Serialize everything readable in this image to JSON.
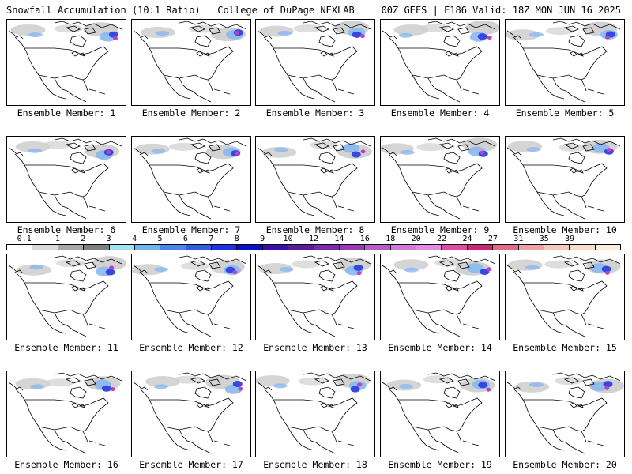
{
  "header": {
    "title_left": "Snowfall Accumulation (10:1 Ratio) | College of DuPage NEXLAB",
    "title_right": "00Z GEFS | F186 Valid: 18Z MON JUN 16 2025"
  },
  "members": [
    {
      "label": "Ensemble Member: 1"
    },
    {
      "label": "Ensemble Member: 2"
    },
    {
      "label": "Ensemble Member: 3"
    },
    {
      "label": "Ensemble Member: 4"
    },
    {
      "label": "Ensemble Member: 5"
    },
    {
      "label": "Ensemble Member: 6"
    },
    {
      "label": "Ensemble Member: 7"
    },
    {
      "label": "Ensemble Member: 8"
    },
    {
      "label": "Ensemble Member: 9"
    },
    {
      "label": "Ensemble Member: 10"
    },
    {
      "label": "Ensemble Member: 11"
    },
    {
      "label": "Ensemble Member: 12"
    },
    {
      "label": "Ensemble Member: 13"
    },
    {
      "label": "Ensemble Member: 14"
    },
    {
      "label": "Ensemble Member: 15"
    },
    {
      "label": "Ensemble Member: 16"
    },
    {
      "label": "Ensemble Member: 17"
    },
    {
      "label": "Ensemble Member: 18"
    },
    {
      "label": "Ensemble Member: 19"
    },
    {
      "label": "Ensemble Member: 20"
    }
  ],
  "legend": {
    "labels": [
      "0.1",
      "1",
      "2",
      "3",
      "4",
      "5",
      "6",
      "7",
      "8",
      "9",
      "10",
      "12",
      "14",
      "16",
      "18",
      "20",
      "22",
      "24",
      "27",
      "31",
      "35",
      "39"
    ],
    "colors": [
      "#ffffff",
      "#d9d9d9",
      "#a6a6a6",
      "#7f7f7f",
      "#9ee3f5",
      "#6fb4ee",
      "#4a86e8",
      "#2f5ee0",
      "#1b32e6",
      "#0a10c8",
      "#3a10a8",
      "#5a1a9a",
      "#7a2aa8",
      "#9a3ab8",
      "#b85ac8",
      "#d07ad6",
      "#e08ae0",
      "#e04aa8",
      "#c8287a",
      "#e06a8a",
      "#f0a0a0",
      "#f5c8b8",
      "#f8dcc8",
      "#fbeedd"
    ]
  },
  "colors": {
    "border": "#000000",
    "snow_light": "#d0d0d0",
    "snow_mid": "#8ab8f0",
    "snow_heavy": "#3040e0",
    "snow_extreme": "#c040c0"
  }
}
